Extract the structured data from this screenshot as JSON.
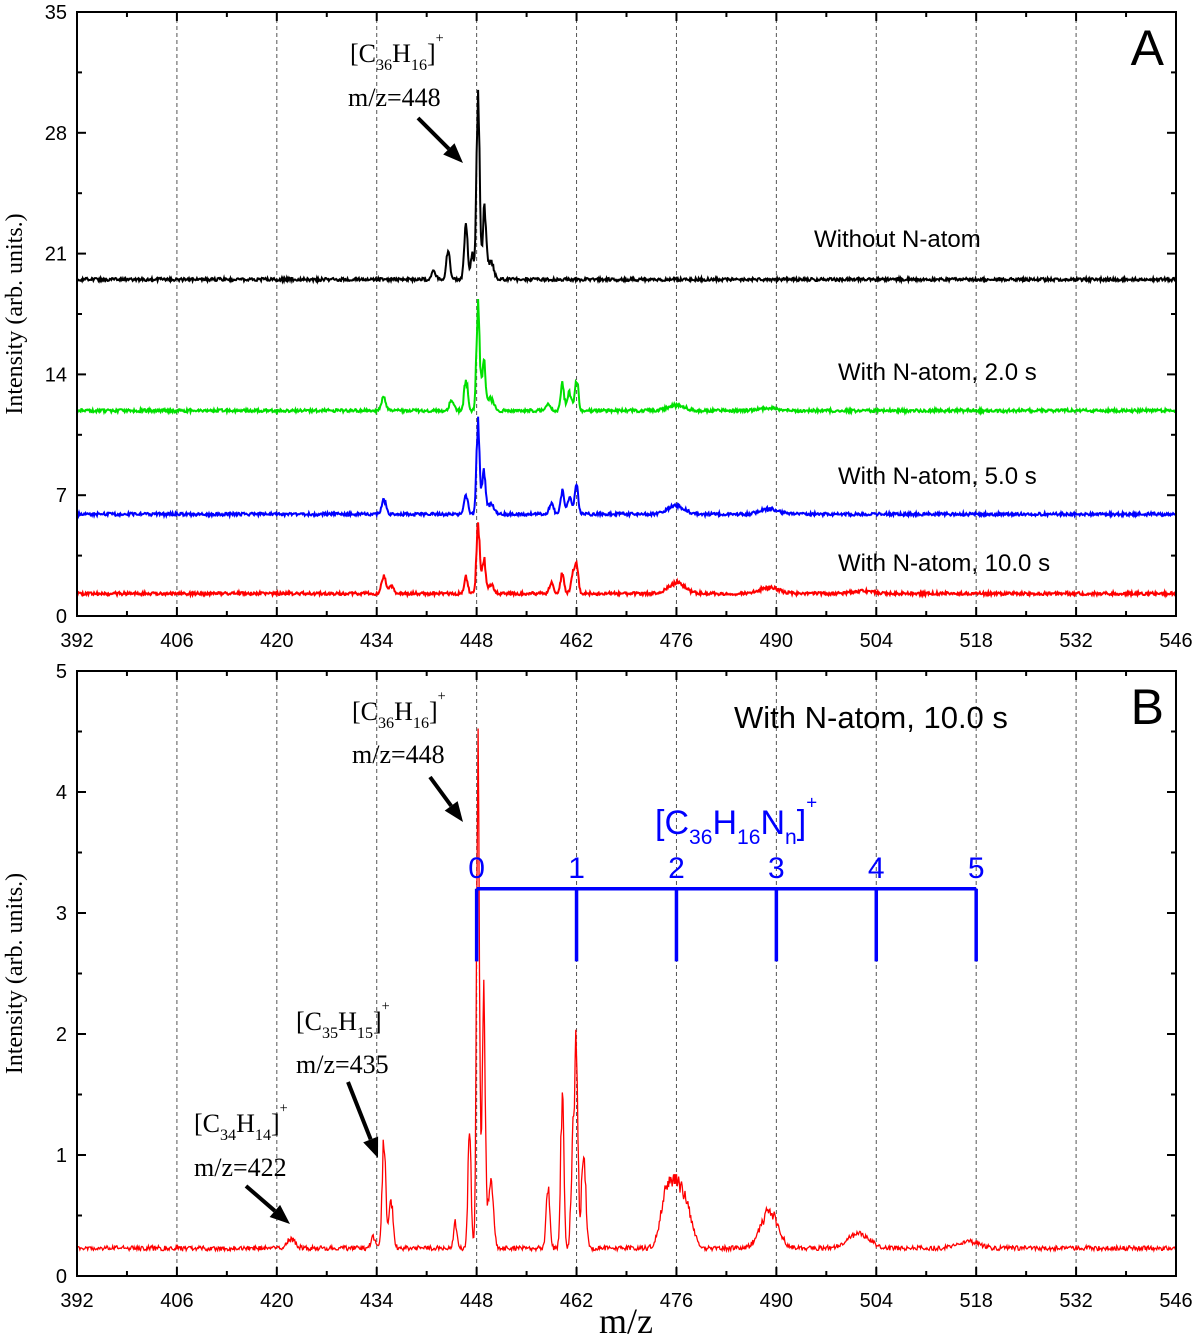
{
  "chart_data": [
    {
      "panel": "A",
      "type": "line",
      "xlabel": "",
      "ylabel": "Intensity (arb. units.)",
      "xlim": [
        392,
        546
      ],
      "ylim": [
        0,
        35
      ],
      "xticks": [
        "392",
        "406",
        "420",
        "434",
        "448",
        "462",
        "476",
        "490",
        "504",
        "518",
        "532",
        "546"
      ],
      "yticks": [
        "0",
        "7",
        "14",
        "21",
        "28",
        "35"
      ],
      "grid": "vertical dashed",
      "annotations": {
        "formula": [
          [
            "[C",
            ""
          ],
          [
            "36",
            "sub"
          ],
          [
            "H",
            ""
          ],
          [
            "16",
            "sub"
          ],
          [
            "]",
            ""
          ],
          [
            "+",
            "sup"
          ]
        ],
        "mz": "m/z=448"
      },
      "series": [
        {
          "name": "Without N-atom",
          "color": "#000000",
          "baseline": 19.5,
          "peaks": [
            [
              442,
              0.5,
              0.3
            ],
            [
              444,
              1.7,
              0.25
            ],
            [
              446.5,
              3.0,
              0.25
            ],
            [
              447.4,
              1.5,
              0.2
            ],
            [
              448.2,
              10.5,
              0.22
            ],
            [
              449.1,
              4.0,
              0.25
            ],
            [
              450,
              1.0,
              0.4
            ]
          ]
        },
        {
          "name": "With N-atom, 2.0 s",
          "color": "#00e000",
          "baseline": 11.9,
          "peaks": [
            [
              435,
              0.8,
              0.3
            ],
            [
              444.5,
              0.6,
              0.3
            ],
            [
              446.5,
              1.8,
              0.25
            ],
            [
              448.2,
              6.5,
              0.22
            ],
            [
              449,
              2.8,
              0.25
            ],
            [
              450,
              0.7,
              0.4
            ],
            [
              458,
              0.4,
              0.3
            ],
            [
              460,
              1.5,
              0.25
            ],
            [
              461,
              1.0,
              0.3
            ],
            [
              462,
              1.8,
              0.25
            ],
            [
              476,
              0.3,
              1.2
            ],
            [
              489,
              0.15,
              1.2
            ]
          ]
        },
        {
          "name": "With N-atom, 5.0 s",
          "color": "#0000ff",
          "baseline": 5.9,
          "peaks": [
            [
              435,
              0.9,
              0.3
            ],
            [
              446.5,
              1.2,
              0.25
            ],
            [
              448.2,
              5.3,
              0.22
            ],
            [
              449,
              2.4,
              0.25
            ],
            [
              450,
              0.6,
              0.4
            ],
            [
              458.5,
              0.6,
              0.3
            ],
            [
              460,
              1.4,
              0.25
            ],
            [
              461,
              1.0,
              0.3
            ],
            [
              462,
              1.6,
              0.25
            ],
            [
              476,
              0.5,
              1.2
            ],
            [
              489,
              0.3,
              1.3
            ]
          ]
        },
        {
          "name": "With N-atom, 10.0 s",
          "color": "#ff0000",
          "baseline": 1.3,
          "peaks": [
            [
              435,
              1.0,
              0.3
            ],
            [
              436,
              0.5,
              0.3
            ],
            [
              446.5,
              0.9,
              0.25
            ],
            [
              448.2,
              4.1,
              0.22
            ],
            [
              449,
              2.0,
              0.25
            ],
            [
              450,
              0.5,
              0.4
            ],
            [
              458.5,
              0.6,
              0.3
            ],
            [
              460,
              1.2,
              0.25
            ],
            [
              461.5,
              1.0,
              0.3
            ],
            [
              462,
              1.6,
              0.25
            ],
            [
              476,
              0.6,
              1.2
            ],
            [
              489,
              0.35,
              1.3
            ],
            [
              502,
              0.15,
              1.5
            ]
          ]
        }
      ],
      "letter": "A"
    },
    {
      "panel": "B",
      "type": "line",
      "xlabel": "m/z",
      "ylabel": "Intensity (arb. units.)",
      "xlim": [
        392,
        546
      ],
      "ylim": [
        0,
        5
      ],
      "xticks": [
        "392",
        "406",
        "420",
        "434",
        "448",
        "462",
        "476",
        "490",
        "504",
        "518",
        "532",
        "546"
      ],
      "yticks": [
        "0",
        "1",
        "2",
        "3",
        "4",
        "5"
      ],
      "grid": "vertical dashed",
      "title": "With N-atom, 10.0 s",
      "letter": "B",
      "series": [
        {
          "color": "#ff0000",
          "baseline": 0.23,
          "peaks": [
            [
              422,
              0.08,
              0.6
            ],
            [
              433.5,
              0.1,
              0.3
            ],
            [
              435,
              0.85,
              0.25
            ],
            [
              436,
              0.4,
              0.3
            ],
            [
              445,
              0.2,
              0.25
            ],
            [
              447,
              0.95,
              0.22
            ],
            [
              448.2,
              4.1,
              0.2
            ],
            [
              449,
              2.1,
              0.22
            ],
            [
              450,
              0.6,
              0.35
            ],
            [
              458,
              0.5,
              0.25
            ],
            [
              460,
              1.25,
              0.22
            ],
            [
              461.5,
              0.9,
              0.25
            ],
            [
              462,
              1.6,
              0.2
            ],
            [
              463,
              0.8,
              0.3
            ],
            [
              474.5,
              0.4,
              0.8
            ],
            [
              476,
              0.45,
              0.8
            ],
            [
              477.5,
              0.3,
              0.8
            ],
            [
              489,
              0.3,
              1.2
            ],
            [
              501.5,
              0.12,
              1.5
            ],
            [
              517,
              0.05,
              1.5
            ]
          ]
        }
      ],
      "annotations": [
        {
          "formula": [
            [
              "[C",
              ""
            ],
            [
              "36",
              "sub"
            ],
            [
              "H",
              ""
            ],
            [
              "16",
              "sub"
            ],
            [
              "]",
              ""
            ],
            [
              "+",
              "sup"
            ]
          ],
          "mz": "m/z=448"
        },
        {
          "formula": [
            [
              "[C",
              ""
            ],
            [
              "35",
              "sub"
            ],
            [
              "H",
              ""
            ],
            [
              "15",
              "sub"
            ],
            [
              "]",
              ""
            ],
            [
              "+",
              "sup"
            ]
          ],
          "mz": "m/z=435"
        },
        {
          "formula": [
            [
              "[C",
              ""
            ],
            [
              "34",
              "sub"
            ],
            [
              "H",
              ""
            ],
            [
              "14",
              "sub"
            ],
            [
              "]",
              ""
            ],
            [
              "+",
              "sup"
            ]
          ],
          "mz": "m/z=422"
        }
      ],
      "nitrogen_series": {
        "formula": [
          [
            "[C",
            ""
          ],
          [
            "36",
            "sub"
          ],
          [
            "H",
            ""
          ],
          [
            "16",
            "sub"
          ],
          [
            "N",
            ""
          ],
          [
            "n",
            "sub"
          ],
          [
            "]",
            ""
          ],
          [
            "+",
            "sup"
          ]
        ],
        "color": "#0000ff",
        "labels": [
          "0",
          "1",
          "2",
          "3",
          "4",
          "5"
        ],
        "mz": [
          448,
          462,
          476,
          490,
          504,
          518
        ]
      }
    }
  ]
}
